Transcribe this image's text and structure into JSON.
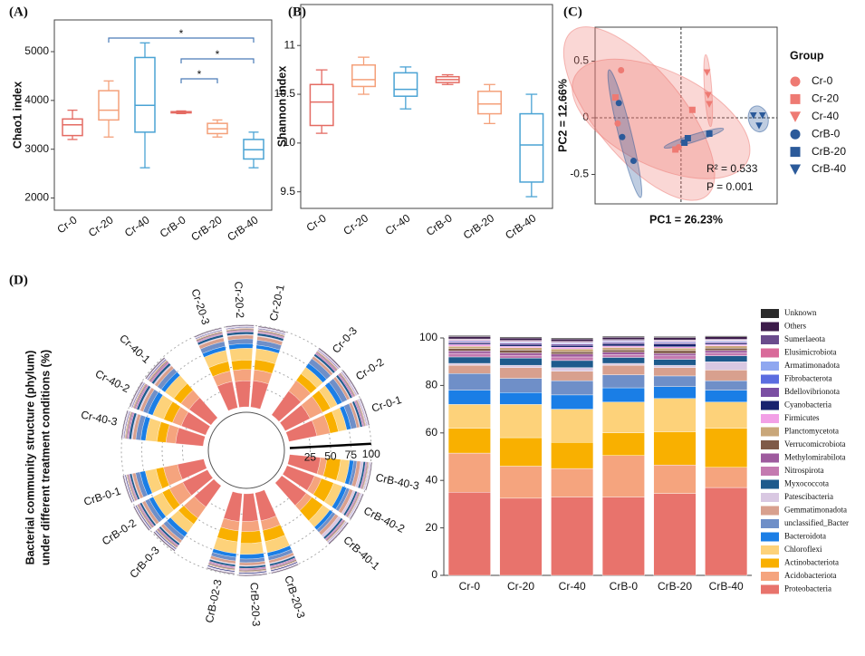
{
  "chart_data": [
    {
      "type": "box",
      "panel_label": "(A)",
      "ylabel": "Chao1 index",
      "categories": [
        "Cr-0",
        "Cr-20",
        "Cr-40",
        "CrB-0",
        "CrB-20",
        "CrB-40"
      ],
      "boxes": [
        [
          3200,
          3280,
          3500,
          3620,
          3800
        ],
        [
          3250,
          3600,
          3800,
          4200,
          4400
        ],
        [
          2620,
          3350,
          3900,
          4880,
          5180
        ],
        [
          3730,
          3745,
          3760,
          3770,
          3785
        ],
        [
          3250,
          3320,
          3420,
          3530,
          3600
        ],
        [
          2620,
          2800,
          2990,
          3200,
          3350
        ]
      ],
      "colors": [
        "#e46b63",
        "#f4a07a",
        "#4aa3d4",
        "#e46b63",
        "#f4a07a",
        "#4aa3d4"
      ],
      "ylim": [
        1750,
        5650
      ],
      "yticks": [
        2000,
        3000,
        4000,
        5000
      ],
      "annotations": [
        "*",
        "*",
        "*"
      ],
      "annotation_color": "#4a7bb7"
    },
    {
      "type": "box",
      "panel_label": "(B)",
      "ylabel": "Shannon index",
      "categories": [
        "Cr-0",
        "Cr-20",
        "Cr-40",
        "CrB-0",
        "CrB-20",
        "CrB-40"
      ],
      "boxes": [
        [
          10.1,
          10.18,
          10.42,
          10.6,
          10.75
        ],
        [
          10.5,
          10.58,
          10.65,
          10.8,
          10.88
        ],
        [
          10.35,
          10.48,
          10.55,
          10.72,
          10.78
        ],
        [
          10.6,
          10.62,
          10.65,
          10.68,
          10.7
        ],
        [
          10.2,
          10.3,
          10.4,
          10.53,
          10.6
        ],
        [
          9.45,
          9.6,
          9.98,
          10.3,
          10.5
        ]
      ],
      "colors": [
        "#e46b63",
        "#f4a07a",
        "#4aa3d4",
        "#e46b63",
        "#f4a07a",
        "#4aa3d4"
      ],
      "ylim": [
        9.33,
        11.42
      ],
      "yticks": [
        9.5,
        10,
        10.5,
        11
      ]
    },
    {
      "type": "scatter",
      "panel_label": "(C)",
      "xlabel": "PC1 = 26.23%",
      "ylabel": "PC2 = 12.66%",
      "legend_title": "Group",
      "annotations": [
        "R² = 0.533",
        "P = 0.001"
      ],
      "xlim": [
        -0.76,
        0.85
      ],
      "ylim": [
        -0.76,
        0.8
      ],
      "yticks": [
        0.5,
        0,
        -0.5
      ],
      "series": [
        {
          "name": "Cr-0",
          "color": "#ee7a73",
          "marker": "circle",
          "x": [
            -0.53,
            -0.56,
            -0.02
          ],
          "values": [
            0.42,
            -0.05,
            -0.26
          ]
        },
        {
          "name": "Cr-20",
          "color": "#ee7a73",
          "marker": "square",
          "x": [
            -0.58,
            0.1,
            -0.05
          ],
          "values": [
            0.18,
            0.07,
            -0.28
          ]
        },
        {
          "name": "Cr-40",
          "color": "#ee7a73",
          "marker": "triangle",
          "x": [
            0.23,
            0.24,
            0.25
          ],
          "values": [
            0.4,
            0.2,
            0.12
          ]
        },
        {
          "name": "CrB-0",
          "color": "#2b5a9a",
          "marker": "circle",
          "x": [
            -0.55,
            -0.52,
            -0.42
          ],
          "values": [
            0.13,
            -0.17,
            -0.38
          ]
        },
        {
          "name": "CrB-20",
          "color": "#2b5a9a",
          "marker": "square",
          "x": [
            0.25,
            0.03,
            0.06
          ],
          "values": [
            -0.14,
            -0.22,
            -0.18
          ]
        },
        {
          "name": "CrB-40",
          "color": "#2b5a9a",
          "marker": "triangle",
          "x": [
            0.64,
            0.72,
            0.69
          ],
          "values": [
            0.02,
            0.02,
            -0.07
          ]
        }
      ]
    },
    {
      "type": "radial_bar",
      "panel_label": "(D)",
      "ylabel": [
        "Bacterial community structure (phylum)",
        "under different treatment conditions (%)"
      ],
      "categories": [
        "CrB-40-3",
        "CrB-40-2",
        "CrB-40-1",
        "CrB-20-3",
        "CrB-20-3",
        "CrB-02-3",
        "CrB-0-3",
        "CrB-0-2",
        "CrB-0-1",
        "Cr-40-3",
        "Cr-40-2",
        "Cr-40-1",
        "Cr-20-3",
        "Cr-20-2",
        "Cr-20-1",
        "Cr-0-3",
        "Cr-0-2",
        "Cr-0-1"
      ],
      "rlim": [
        0,
        100
      ],
      "rticks": [
        25,
        50,
        75,
        100
      ],
      "series": [
        {
          "color": "#e8736c",
          "values": [
            38,
            36,
            37,
            35,
            34,
            34.5,
            32,
            34,
            33,
            34,
            32,
            33,
            33,
            32,
            32.5,
            36,
            34,
            35
          ]
        },
        {
          "color": "#f5a47e",
          "values": [
            8,
            9,
            8.5,
            12,
            12.5,
            11.5,
            17,
            18,
            17.5,
            12,
            11.5,
            12.5,
            13,
            14,
            13.5,
            16,
            17,
            16.5
          ]
        },
        {
          "color": "#f9b000",
          "values": [
            17,
            16,
            16.5,
            14,
            14.5,
            13.5,
            9,
            10,
            9.5,
            11,
            11.5,
            10.5,
            12,
            11.5,
            12.5,
            10,
            11,
            10.5
          ]
        },
        {
          "color": "#fdd27a",
          "values": [
            11,
            11.5,
            10.5,
            14,
            13.5,
            14.5,
            13,
            12.5,
            13.5,
            14,
            14.5,
            13.5,
            14,
            14.5,
            13.5,
            10,
            9.5,
            10.5
          ]
        },
        {
          "color": "#1a7ee6",
          "values": [
            5,
            5.5,
            4.5,
            5,
            5.5,
            4.5,
            6,
            5.5,
            6.5,
            6,
            6.5,
            5.5,
            5,
            5.5,
            4.5,
            6,
            6.5,
            5.5
          ]
        },
        {
          "color": "#6f8fc8",
          "values": [
            4,
            4,
            4,
            4.5,
            4.5,
            4.5,
            5.5,
            5.5,
            5.5,
            6,
            6,
            6,
            6,
            6,
            6,
            7,
            7,
            7
          ]
        },
        {
          "color": "#d8a08e",
          "values": [
            4.5,
            4.5,
            4.5,
            3.5,
            3.5,
            3.5,
            4,
            4,
            4,
            4,
            4,
            4,
            4.5,
            4.5,
            4.5,
            3.5,
            3.5,
            3.5
          ]
        },
        {
          "color": "#d9c8e2",
          "values": [
            3.5,
            3,
            4,
            1,
            1,
            1,
            0.8,
            0.8,
            0.8,
            1.5,
            1.5,
            1.5,
            1,
            1,
            1,
            0.8,
            0.8,
            0.8
          ]
        },
        {
          "color": "#1e5a8c",
          "values": [
            2.5,
            2.5,
            2.5,
            2.5,
            2.5,
            2.5,
            2.5,
            2.5,
            2.5,
            3,
            3,
            3,
            3,
            3,
            3,
            2.7,
            2.7,
            2.7
          ]
        },
        {
          "color": "#c47ab0",
          "values": [
            1.2,
            1.2,
            1.2,
            1.5,
            1.5,
            1.5,
            1.2,
            1.2,
            1.2,
            1.5,
            1.5,
            1.5,
            1.2,
            1.2,
            1.2,
            1.5,
            1.5,
            1.5
          ]
        },
        {
          "color": "#9e5b9e",
          "values": [
            1,
            1,
            1,
            1,
            1,
            1,
            1,
            1,
            1,
            1.2,
            1.2,
            1.2,
            1,
            1,
            1,
            1,
            1,
            1
          ]
        },
        {
          "color": "#7f5a48",
          "values": [
            1,
            1,
            1,
            1.2,
            1.2,
            1.2,
            1,
            1,
            1,
            1,
            1,
            1,
            1.2,
            1.2,
            1.2,
            1,
            1,
            1
          ]
        },
        {
          "color": "#c9a77a",
          "values": [
            1,
            1,
            1,
            1,
            1,
            1,
            1,
            1,
            1,
            1.2,
            1.2,
            1.2,
            1,
            1,
            1,
            1,
            1,
            1
          ]
        },
        {
          "color": "#f2a0e6",
          "values": [
            0.6,
            0.6,
            0.6,
            0.6,
            0.6,
            0.6,
            0.6,
            0.6,
            0.6,
            0.7,
            0.7,
            0.7,
            0.6,
            0.6,
            0.6,
            0.8,
            0.8,
            0.8
          ]
        },
        {
          "color": "#18236e",
          "values": [
            0.5,
            0.5,
            0.5,
            1.2,
            1.2,
            1.2,
            1,
            1,
            1,
            0.8,
            0.8,
            0.8,
            0.8,
            0.8,
            0.8,
            0.6,
            0.6,
            0.6
          ]
        },
        {
          "color": "#7b4fa3",
          "values": [
            0.5,
            0.5,
            0.5,
            0.5,
            0.5,
            0.5,
            0.5,
            0.5,
            0.5,
            0.5,
            0.5,
            0.5,
            0.5,
            0.5,
            0.5,
            0.5,
            0.5,
            0.5
          ]
        },
        {
          "color": "#5b6de0",
          "values": [
            0.3,
            0.3,
            0.3,
            0.3,
            0.3,
            0.3,
            0.3,
            0.3,
            0.3,
            0.3,
            0.3,
            0.3,
            0.3,
            0.3,
            0.3,
            0.3,
            0.3,
            0.3
          ]
        },
        {
          "color": "#8fa7f0",
          "values": [
            0.3,
            0.3,
            0.3,
            0.3,
            0.3,
            0.3,
            0.3,
            0.3,
            0.3,
            0.3,
            0.3,
            0.3,
            0.3,
            0.3,
            0.3,
            0.3,
            0.3,
            0.3
          ]
        },
        {
          "color": "#d96a9a",
          "values": [
            0.3,
            0.3,
            0.3,
            0.3,
            0.3,
            0.3,
            0.3,
            0.3,
            0.3,
            0.3,
            0.3,
            0.3,
            0.3,
            0.3,
            0.3,
            0.3,
            0.3,
            0.3
          ]
        },
        {
          "color": "#6a4b8c",
          "values": [
            0.3,
            0.3,
            0.3,
            0.3,
            0.3,
            0.3,
            0.3,
            0.3,
            0.3,
            0.3,
            0.3,
            0.3,
            0.3,
            0.3,
            0.3,
            0.3,
            0.3,
            0.3
          ]
        },
        {
          "color": "#3c1b4a",
          "values": [
            1,
            1,
            1,
            1,
            1,
            1,
            1,
            1,
            1,
            1,
            1,
            1,
            1,
            1,
            1,
            1,
            1,
            1
          ]
        },
        {
          "color": "#2a2a2a",
          "values": [
            0.4,
            0.4,
            0.4,
            0.4,
            0.4,
            0.4,
            0.4,
            0.4,
            0.4,
            0.4,
            0.4,
            0.4,
            0.4,
            0.4,
            0.4,
            0.4,
            0.4,
            0.4
          ]
        }
      ]
    },
    {
      "type": "stacked_bar",
      "categories": [
        "Cr-0",
        "Cr-20",
        "Cr-40",
        "CrB-0",
        "CrB-20",
        "CrB-40"
      ],
      "ylim": [
        0,
        100
      ],
      "yticks": [
        0,
        20,
        40,
        60,
        80,
        100
      ],
      "series": [
        {
          "name": "Proteobacteria",
          "color": "#e8736c",
          "values": [
            35,
            32.5,
            33,
            33,
            34.5,
            37
          ]
        },
        {
          "name": "Acidobacteriota",
          "color": "#f5a47e",
          "values": [
            16.5,
            13.5,
            12,
            17.5,
            12,
            8.5
          ]
        },
        {
          "name": "Actinobacteriota",
          "color": "#f9b000",
          "values": [
            10.5,
            12,
            11,
            9.5,
            14,
            16.5
          ]
        },
        {
          "name": "Chloroflexi",
          "color": "#fdd27a",
          "values": [
            10,
            14,
            14,
            13,
            14,
            11
          ]
        },
        {
          "name": "Bacteroidota",
          "color": "#1a7ee6",
          "values": [
            6,
            5,
            6,
            6,
            5,
            5
          ]
        },
        {
          "name": "unclassified_Bacter",
          "color": "#6f8fc8",
          "values": [
            7,
            6,
            6,
            5.5,
            4.5,
            4
          ]
        },
        {
          "name": "Gemmatimonadota",
          "color": "#d8a08e",
          "values": [
            3.5,
            4.5,
            4,
            4,
            3.5,
            4.5
          ]
        },
        {
          "name": "Patescibacteria",
          "color": "#d9c8e2",
          "values": [
            0.8,
            1,
            1.5,
            0.8,
            1,
            3.5
          ]
        },
        {
          "name": "Myxococcota",
          "color": "#1e5a8c",
          "values": [
            2.7,
            3,
            3,
            2.5,
            2.5,
            2.5
          ]
        },
        {
          "name": "Nitrospirota",
          "color": "#c47ab0",
          "values": [
            1.5,
            1.2,
            1.5,
            1.2,
            1.5,
            1.2
          ]
        },
        {
          "name": "Methylomirabilota",
          "color": "#9e5b9e",
          "values": [
            1,
            1,
            1.2,
            1,
            1,
            1
          ]
        },
        {
          "name": "Verrucomicrobiota",
          "color": "#7f5a48",
          "values": [
            1,
            1.2,
            1,
            1,
            1.2,
            1
          ]
        },
        {
          "name": "Planctomycetota",
          "color": "#c9a77a",
          "values": [
            1,
            1,
            1.2,
            1,
            1,
            1
          ]
        },
        {
          "name": "Firmicutes",
          "color": "#f2a0e6",
          "values": [
            0.8,
            0.6,
            0.7,
            0.6,
            0.6,
            0.6
          ]
        },
        {
          "name": "Cyanobacteria",
          "color": "#18236e",
          "values": [
            0.6,
            0.8,
            0.8,
            1,
            1.2,
            0.5
          ]
        },
        {
          "name": "Bdellovibrionota",
          "color": "#7b4fa3",
          "values": [
            0.5,
            0.5,
            0.5,
            0.5,
            0.5,
            0.5
          ]
        },
        {
          "name": "Fibrobacterota",
          "color": "#5b6de0",
          "values": [
            0.3,
            0.3,
            0.3,
            0.3,
            0.3,
            0.3
          ]
        },
        {
          "name": "Armatimonadota",
          "color": "#8fa7f0",
          "values": [
            0.3,
            0.3,
            0.3,
            0.3,
            0.3,
            0.3
          ]
        },
        {
          "name": "Elusimicrobiota",
          "color": "#d96a9a",
          "values": [
            0.3,
            0.3,
            0.3,
            0.3,
            0.3,
            0.3
          ]
        },
        {
          "name": "Sumerlaeota",
          "color": "#6a4b8c",
          "values": [
            0.3,
            0.3,
            0.3,
            0.3,
            0.3,
            0.3
          ]
        },
        {
          "name": "Others",
          "color": "#3c1b4a",
          "values": [
            1,
            1,
            1,
            1,
            1,
            1
          ]
        },
        {
          "name": "Unknown",
          "color": "#2a2a2a",
          "values": [
            0.4,
            0.4,
            0.4,
            0.4,
            0.4,
            0.4
          ]
        }
      ]
    }
  ]
}
